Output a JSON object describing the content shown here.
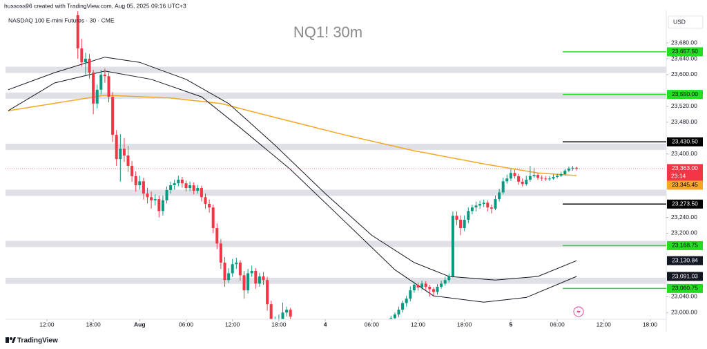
{
  "chart_data": {
    "type": "candlestick",
    "attribution": "hussoss96 created with TradingView.com, Aug 05, 2025 09:16 UTC+3",
    "symbol": "NASDAQ 100 E-mini Futures · 30 · CME",
    "title": "NQ1! 30m",
    "currency": "USD",
    "brand": "TradingView",
    "up_color": "#089981",
    "down_color": "#f23645",
    "x": [
      8,
      9,
      10,
      11,
      12,
      13,
      14,
      15,
      16,
      17,
      18,
      19,
      20,
      21,
      22,
      23,
      24,
      25,
      26,
      27,
      28,
      29,
      30,
      31,
      32,
      33,
      34,
      35,
      36,
      37,
      38,
      39,
      40,
      41,
      42,
      43,
      44,
      45,
      46,
      47,
      48,
      49,
      50,
      51,
      52,
      53,
      54,
      55,
      56,
      57,
      58,
      59,
      60,
      61,
      62,
      63,
      89,
      90,
      91,
      92,
      93,
      94,
      95,
      96,
      97,
      98,
      99,
      100,
      101,
      102,
      103,
      104,
      105,
      106,
      107,
      108,
      109,
      110,
      111,
      112,
      113,
      114,
      115,
      116,
      117,
      118,
      119,
      120,
      121,
      122,
      123,
      124,
      125,
      126,
      127,
      128,
      129,
      130,
      131,
      132,
      133,
      134,
      135,
      136,
      137
    ],
    "open": [
      23750,
      23666,
      23631,
      23640,
      23605,
      23527,
      23562,
      23600,
      23596,
      23544,
      23448,
      23387,
      23413,
      23396,
      23370,
      23344,
      23321,
      23331,
      23300,
      23291,
      23283,
      23286,
      23256,
      23283,
      23309,
      23321,
      23326,
      23335,
      23326,
      23314,
      23321,
      23307,
      23314,
      23291,
      23274,
      23265,
      23213,
      23174,
      23126,
      23082,
      23099,
      23122,
      23126,
      23094,
      23056,
      23099,
      23105,
      23073,
      23091,
      23082,
      23021,
      22969,
      22977,
      22983,
      23000,
      23007,
      22975,
      22986,
      22995,
      23007,
      23024,
      23035,
      23056,
      23070,
      23063,
      23073,
      23065,
      23059,
      23052,
      23065,
      23073,
      23082,
      23091,
      23244,
      23234,
      23213,
      23234,
      23256,
      23265,
      23270,
      23274,
      23277,
      23265,
      23262,
      23286,
      23303,
      23331,
      23338,
      23352,
      23344,
      23330,
      23324,
      23335,
      23344,
      23347,
      23340,
      23338,
      23337,
      23338,
      23342,
      23345,
      23349,
      23358,
      23363,
      23365
    ],
    "high": [
      23760,
      23690,
      23655,
      23652,
      23612,
      23575,
      23612,
      23615,
      23605,
      23556,
      23460,
      23450,
      23440,
      23420,
      23382,
      23356,
      23345,
      23340,
      23315,
      23305,
      23298,
      23295,
      23295,
      23318,
      23330,
      23335,
      23345,
      23342,
      23333,
      23330,
      23328,
      23322,
      23320,
      23300,
      23285,
      23272,
      23225,
      23185,
      23140,
      23112,
      23135,
      23138,
      23132,
      23105,
      23110,
      23118,
      23112,
      23100,
      23102,
      23090,
      23030,
      22990,
      22995,
      23025,
      23015,
      23012,
      22992,
      23000,
      23015,
      23030,
      23042,
      23066,
      23078,
      23076,
      23080,
      23079,
      23070,
      23064,
      23072,
      23080,
      23090,
      23098,
      23255,
      23255,
      23245,
      23245,
      23265,
      23272,
      23280,
      23282,
      23285,
      23283,
      23272,
      23295,
      23312,
      23340,
      23348,
      23362,
      23360,
      23350,
      23338,
      23345,
      23370,
      23365,
      23352,
      23346,
      23344,
      23344,
      23348,
      23350,
      23355,
      23362,
      23368,
      23370,
      23368
    ],
    "low": [
      23640,
      23620,
      23600,
      23590,
      23500,
      23515,
      23550,
      23580,
      23530,
      23430,
      23370,
      23330,
      23380,
      23355,
      23330,
      23305,
      23310,
      23285,
      23275,
      23262,
      23270,
      23240,
      23245,
      23275,
      23300,
      23310,
      23318,
      23315,
      23305,
      23306,
      23298,
      23300,
      23280,
      23262,
      23252,
      23200,
      23160,
      23110,
      23065,
      23075,
      23090,
      23110,
      23080,
      23035,
      23048,
      23090,
      23060,
      23065,
      23070,
      23005,
      22950,
      22955,
      22965,
      22975,
      22990,
      22980,
      22965,
      22978,
      22988,
      23000,
      23015,
      23028,
      23050,
      23055,
      23058,
      23058,
      23040,
      23040,
      23045,
      23060,
      23068,
      23076,
      23088,
      23220,
      23195,
      23205,
      23225,
      23248,
      23255,
      23262,
      23266,
      23255,
      23250,
      23258,
      23280,
      23298,
      23325,
      23332,
      23338,
      23322,
      23318,
      23320,
      23330,
      23340,
      23335,
      23332,
      23332,
      23332,
      23335,
      23338,
      23342,
      23345,
      23354,
      23358,
      23358
    ],
    "close": [
      23666,
      23631,
      23640,
      23605,
      23527,
      23562,
      23600,
      23596,
      23544,
      23448,
      23387,
      23413,
      23396,
      23370,
      23344,
      23321,
      23331,
      23300,
      23291,
      23283,
      23286,
      23256,
      23283,
      23309,
      23321,
      23326,
      23335,
      23326,
      23314,
      23321,
      23307,
      23314,
      23291,
      23274,
      23265,
      23213,
      23174,
      23126,
      23082,
      23099,
      23122,
      23126,
      23094,
      23056,
      23099,
      23105,
      23073,
      23091,
      23082,
      23021,
      22969,
      22977,
      22983,
      23000,
      23007,
      22990,
      22986,
      22995,
      23007,
      23024,
      23035,
      23056,
      23070,
      23063,
      23073,
      23065,
      23059,
      23052,
      23065,
      23073,
      23082,
      23091,
      23244,
      23234,
      23213,
      23234,
      23256,
      23265,
      23270,
      23274,
      23277,
      23265,
      23262,
      23286,
      23303,
      23331,
      23338,
      23352,
      23344,
      23330,
      23324,
      23335,
      23344,
      23347,
      23340,
      23338,
      23337,
      23338,
      23342,
      23345,
      23349,
      23358,
      23363,
      23365,
      23363
    ],
    "last_label": "23,363.00",
    "countdown": "23:14",
    "xlim": [
      -10.7,
      160.2
    ],
    "xticks": [
      {
        "value": 0,
        "label": "12:00"
      },
      {
        "value": 12,
        "label": "18:00"
      },
      {
        "value": 24,
        "label": "Aug"
      },
      {
        "value": 36,
        "label": "06:00"
      },
      {
        "value": 48,
        "label": "12:00"
      },
      {
        "value": 60,
        "label": "18:00"
      },
      {
        "value": 72,
        "label": "4"
      },
      {
        "value": 84,
        "label": "06:00"
      },
      {
        "value": 96,
        "label": "12:00"
      },
      {
        "value": 108,
        "label": "18:00"
      },
      {
        "value": 120,
        "label": "5"
      },
      {
        "value": 132,
        "label": "06:00"
      },
      {
        "value": 144,
        "label": "12:00"
      },
      {
        "value": 156,
        "label": "18:00"
      }
    ],
    "ylim": [
      22983,
      23762
    ],
    "yticks": [
      {
        "value": 23680,
        "label": "23,680.00"
      },
      {
        "value": 23640,
        "label": "23,640.00"
      },
      {
        "value": 23600,
        "label": "23,600.00"
      },
      {
        "value": 23520,
        "label": "23,520.00"
      },
      {
        "value": 23480,
        "label": "23,480.00"
      },
      {
        "value": 23400,
        "label": "23,400.00"
      },
      {
        "value": 23240,
        "label": "23,240.00"
      },
      {
        "value": 23200,
        "label": "23,200.00"
      },
      {
        "value": 23040,
        "label": "23,040.00"
      },
      {
        "value": 23000,
        "label": "23,000.00"
      }
    ],
    "zone_color": "#dfe1e6",
    "zones": [
      23612,
      23547,
      23418,
      23302,
      23173,
      23080
    ],
    "levels": [
      {
        "value": 23657.5,
        "label": "23,657.50",
        "color": "#22dd22"
      },
      {
        "value": 23550,
        "label": "23,550.00",
        "color": "#22dd22"
      },
      {
        "value": 23430.5,
        "label": "23,430.50",
        "color": "#000000"
      },
      {
        "value": 23273.5,
        "label": "23,273.50",
        "color": "#000000"
      },
      {
        "value": 23168.75,
        "label": "23,168.75",
        "color": "#22dd22"
      },
      {
        "value": 23060.75,
        "label": "23,060.75",
        "color": "#22dd22"
      }
    ],
    "indicators": [
      {
        "color": "#f5a623",
        "x": [
          -10,
          15,
          32,
          45,
          59,
          77,
          95,
          113,
          127,
          137
        ],
        "values": [
          23509,
          23548,
          23541,
          23527,
          23492,
          23448,
          23408,
          23375,
          23352,
          23345.45
        ],
        "last_label": "23,345.45"
      },
      {
        "color": "#131722",
        "x": [
          -10,
          2,
          15,
          24,
          36,
          47,
          59,
          72,
          84,
          95,
          104,
          116,
          127,
          137
        ],
        "values": [
          23562,
          23605,
          23644,
          23631,
          23588,
          23527,
          23422,
          23300,
          23195,
          23126,
          23091,
          23082,
          23091,
          23130.84
        ],
        "last_label": "23,130.84"
      },
      {
        "color": "#131722",
        "x": [
          -10,
          2,
          15,
          27,
          40,
          50,
          63,
          77,
          90,
          100,
          113,
          124,
          137
        ],
        "values": [
          23509,
          23579,
          23609,
          23588,
          23544,
          23466,
          23361,
          23230,
          23108,
          23042,
          23026,
          23038,
          23091.03
        ],
        "last_label": "23,091.03"
      }
    ]
  }
}
